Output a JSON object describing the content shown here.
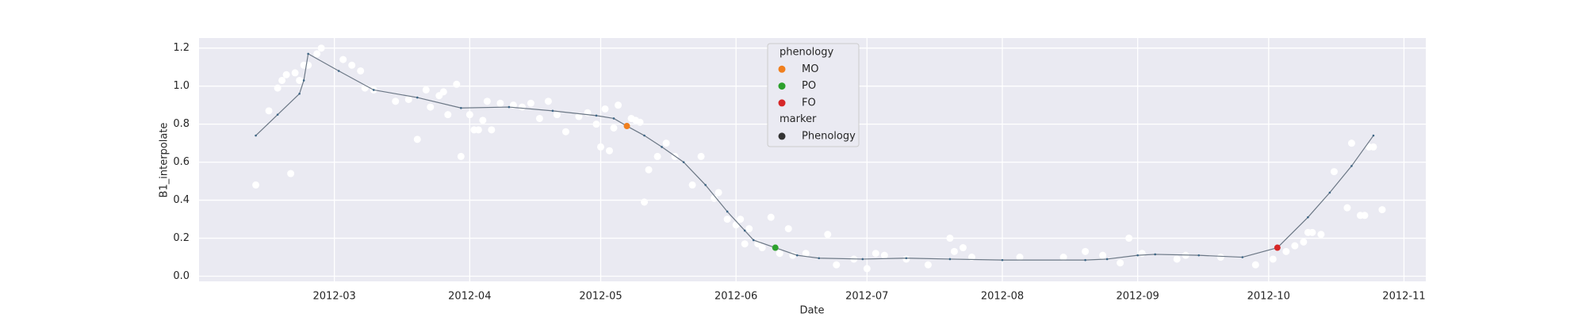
{
  "chart_data": {
    "type": "line",
    "x_label": "Date",
    "y_label": "B1_interpolate",
    "xlim": [
      "2012-01-30",
      "2012-11-06"
    ],
    "xticks": [
      "2012-03",
      "2012-04",
      "2012-05",
      "2012-06",
      "2012-07",
      "2012-08",
      "2012-09",
      "2012-10",
      "2012-11"
    ],
    "ylim": [
      -0.027,
      1.253
    ],
    "yticks": [
      {
        "value": 0,
        "label": "0.0"
      },
      0.2,
      0.4,
      0.6,
      0.8,
      {
        "value": 1,
        "label": "1.0"
      },
      1.2
    ],
    "grid": true,
    "legend_position": "upper center",
    "legend_title": "phenology",
    "marker_legend": {
      "title": "marker",
      "label": "Phenology",
      "color": "#333333"
    },
    "series": [
      {
        "kind": "scatter",
        "color": "#ffffff",
        "x": [
          "2012-02-12",
          "2012-02-15",
          "2012-02-17",
          "2012-02-18",
          "2012-02-19",
          "2012-02-20",
          "2012-02-21",
          "2012-02-22",
          "2012-02-23",
          "2012-02-24",
          "2012-02-26",
          "2012-02-27",
          "2012-03-03",
          "2012-03-05",
          "2012-03-07",
          "2012-03-08",
          "2012-03-10",
          "2012-03-15",
          "2012-03-18",
          "2012-03-20",
          "2012-03-22",
          "2012-03-23",
          "2012-03-25",
          "2012-03-26",
          "2012-03-27",
          "2012-03-29",
          "2012-03-30",
          "2012-04-01",
          "2012-04-02",
          "2012-04-03",
          "2012-04-04",
          "2012-04-05",
          "2012-04-06",
          "2012-04-08",
          "2012-04-11",
          "2012-04-13",
          "2012-04-15",
          "2012-04-17",
          "2012-04-19",
          "2012-04-21",
          "2012-04-23",
          "2012-04-26",
          "2012-04-28",
          "2012-04-30",
          "2012-05-01",
          "2012-05-02",
          "2012-05-03",
          "2012-05-04",
          "2012-05-05",
          "2012-05-08",
          "2012-05-09",
          "2012-05-10",
          "2012-05-11",
          "2012-05-12",
          "2012-05-14",
          "2012-05-16",
          "2012-05-18",
          "2012-05-22",
          "2012-05-24",
          "2012-05-27",
          "2012-05-28",
          "2012-05-30",
          "2012-06-01",
          "2012-06-02",
          "2012-06-03",
          "2012-06-04",
          "2012-06-06",
          "2012-06-07",
          "2012-06-09",
          "2012-06-11",
          "2012-06-13",
          "2012-06-14",
          "2012-06-17",
          "2012-06-22",
          "2012-06-24",
          "2012-06-28",
          "2012-07-01",
          "2012-07-03",
          "2012-07-05",
          "2012-07-10",
          "2012-07-15",
          "2012-07-20",
          "2012-07-21",
          "2012-07-23",
          "2012-07-25",
          "2012-08-05",
          "2012-08-15",
          "2012-08-20",
          "2012-08-24",
          "2012-08-28",
          "2012-08-30",
          "2012-09-02",
          "2012-09-10",
          "2012-09-12",
          "2012-09-20",
          "2012-09-28",
          "2012-10-02",
          "2012-10-05",
          "2012-10-07",
          "2012-10-09",
          "2012-10-10",
          "2012-10-11",
          "2012-10-13",
          "2012-10-16",
          "2012-10-19",
          "2012-10-20",
          "2012-10-22",
          "2012-10-23",
          "2012-10-24",
          "2012-10-25",
          "2012-10-27"
        ],
        "values": [
          0.48,
          0.87,
          0.99,
          1.03,
          1.06,
          0.54,
          1.07,
          1.03,
          1.11,
          1.11,
          1.17,
          1.2,
          1.14,
          1.11,
          1.08,
          0.99,
          0.98,
          0.92,
          0.93,
          0.72,
          0.98,
          0.89,
          0.95,
          0.97,
          0.85,
          1.01,
          0.63,
          0.85,
          0.77,
          0.77,
          0.82,
          0.92,
          0.77,
          0.91,
          0.9,
          0.89,
          0.91,
          0.83,
          0.92,
          0.85,
          0.76,
          0.84,
          0.86,
          0.8,
          0.68,
          0.88,
          0.66,
          0.78,
          0.9,
          0.83,
          0.82,
          0.81,
          0.39,
          0.56,
          0.63,
          0.7,
          0.63,
          0.48,
          0.63,
          0.41,
          0.44,
          0.3,
          0.27,
          0.3,
          0.17,
          0.25,
          0.17,
          0.15,
          0.31,
          0.12,
          0.25,
          0.11,
          0.12,
          0.22,
          0.06,
          0.09,
          0.04,
          0.12,
          0.11,
          0.09,
          0.06,
          0.2,
          0.13,
          0.15,
          0.1,
          0.1,
          0.1,
          0.13,
          0.11,
          0.07,
          0.2,
          0.12,
          0.09,
          0.11,
          0.1,
          0.06,
          0.09,
          0.13,
          0.16,
          0.18,
          0.23,
          0.23,
          0.22,
          0.55,
          0.36,
          0.7,
          0.32,
          0.32,
          0.68,
          0.68,
          0.35
        ]
      },
      {
        "kind": "line",
        "color": "#6b7785",
        "marker_color": "#3d6685",
        "x": [
          "2012-02-12",
          "2012-02-17",
          "2012-02-22",
          "2012-02-23",
          "2012-02-24",
          "2012-03-02",
          "2012-03-10",
          "2012-03-20",
          "2012-03-30",
          "2012-04-10",
          "2012-04-20",
          "2012-04-30",
          "2012-05-04",
          "2012-05-07",
          "2012-05-11",
          "2012-05-15",
          "2012-05-20",
          "2012-05-25",
          "2012-05-30",
          "2012-06-03",
          "2012-06-05",
          "2012-06-10",
          "2012-06-15",
          "2012-06-20",
          "2012-06-30",
          "2012-07-10",
          "2012-07-20",
          "2012-08-01",
          "2012-08-20",
          "2012-08-25",
          "2012-09-01",
          "2012-09-05",
          "2012-09-15",
          "2012-09-25",
          "2012-10-03",
          "2012-10-10",
          "2012-10-15",
          "2012-10-20",
          "2012-10-25"
        ],
        "values": [
          0.74,
          0.85,
          0.96,
          1.03,
          1.17,
          1.08,
          0.98,
          0.94,
          0.885,
          0.89,
          0.87,
          0.845,
          0.83,
          0.79,
          0.74,
          0.68,
          0.6,
          0.48,
          0.34,
          0.24,
          0.19,
          0.15,
          0.11,
          0.095,
          0.09,
          0.095,
          0.09,
          0.085,
          0.085,
          0.09,
          0.11,
          0.115,
          0.11,
          0.1,
          0.15,
          0.31,
          0.44,
          0.58,
          0.74
        ]
      },
      {
        "kind": "scatter",
        "name": "MO",
        "color": "#f07f1e",
        "x": [
          "2012-05-07"
        ],
        "values": [
          0.79
        ]
      },
      {
        "kind": "scatter",
        "name": "PO",
        "color": "#2ca02c",
        "x": [
          "2012-06-10"
        ],
        "values": [
          0.15
        ]
      },
      {
        "kind": "scatter",
        "name": "FO",
        "color": "#d62728",
        "x": [
          "2012-10-03"
        ],
        "values": [
          0.15
        ]
      }
    ]
  }
}
